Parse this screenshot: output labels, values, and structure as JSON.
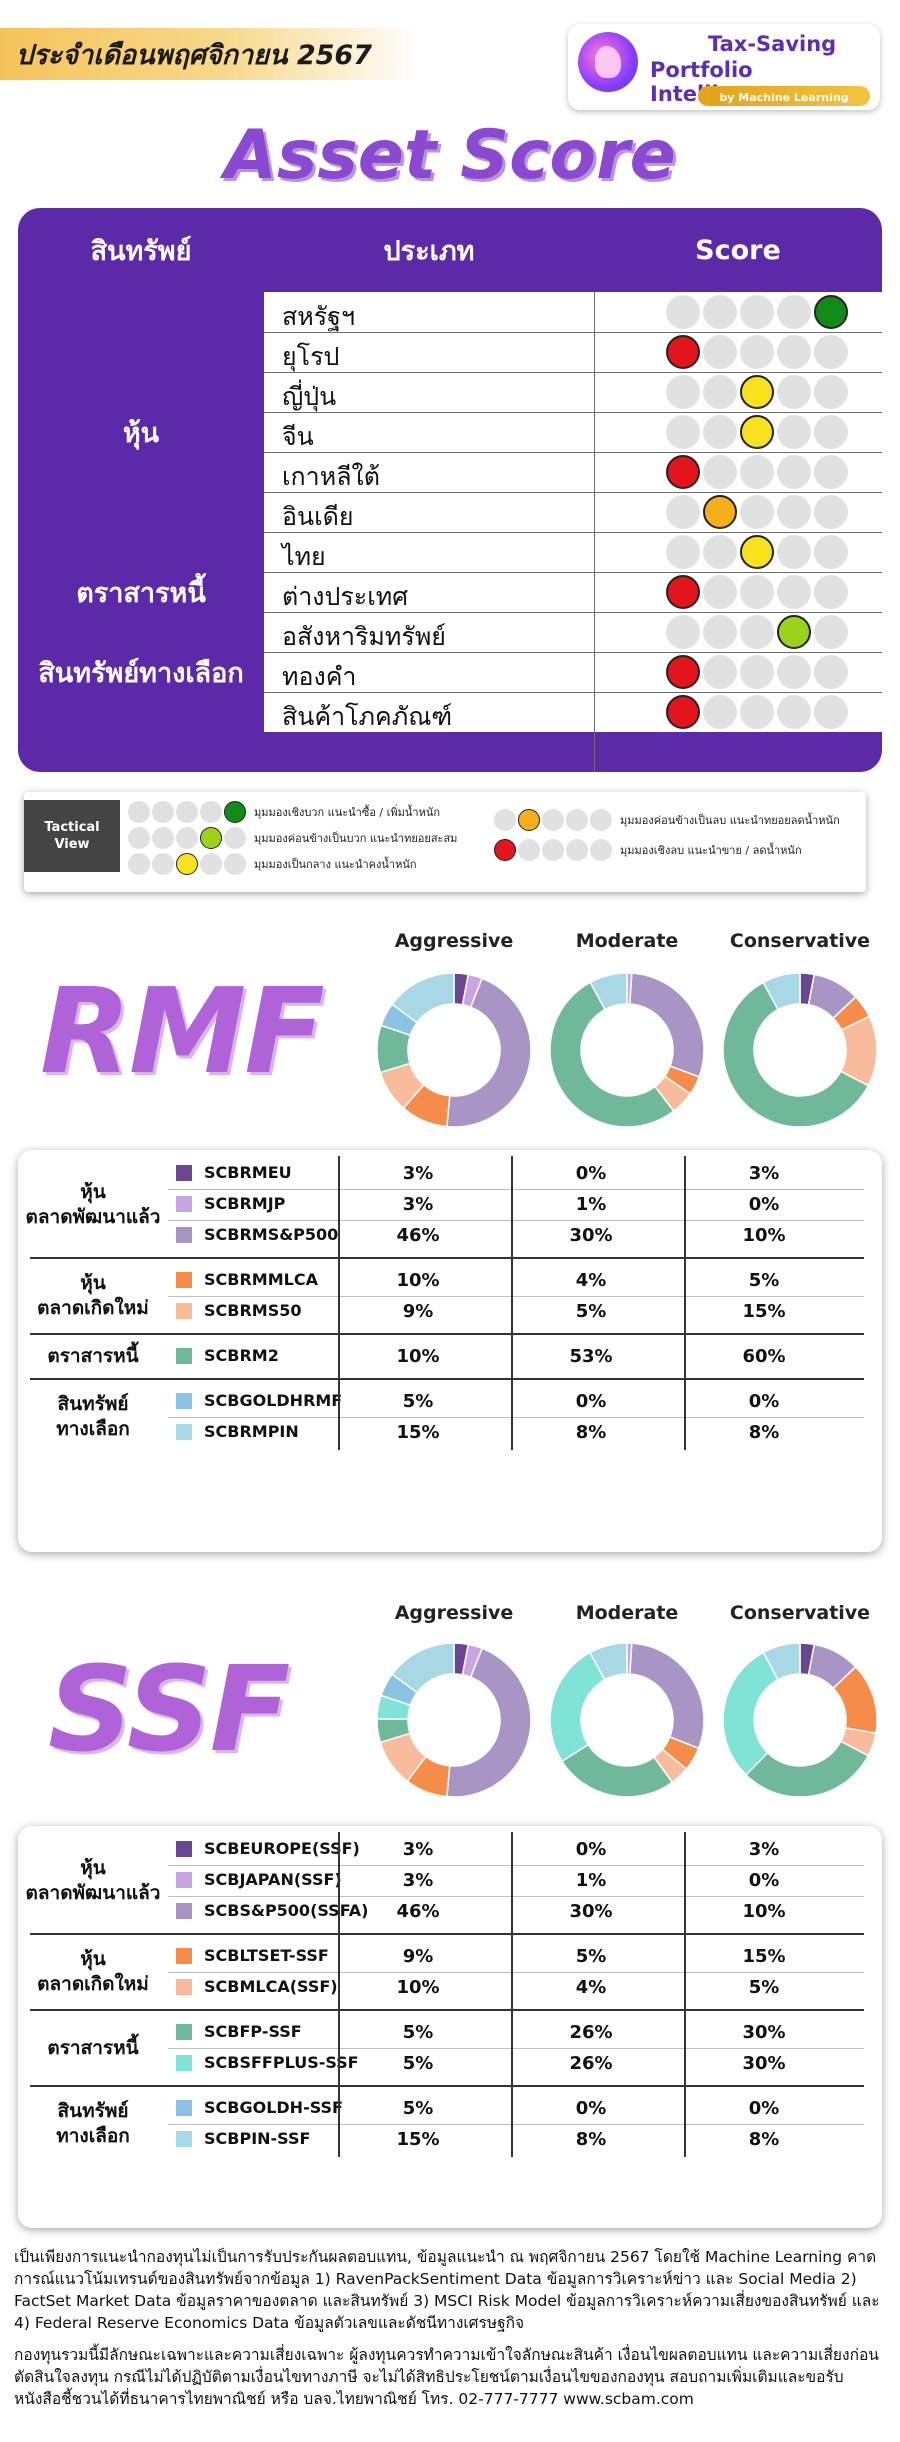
{
  "header": {
    "month": "ประจำเดือนพฤศจิกายน 2567",
    "brand_line1": "Tax-Saving",
    "brand_line2": "Portfolio Intelligence",
    "brand_tag": "by Machine Learning"
  },
  "asset_score": {
    "title": "Asset Score",
    "headers": {
      "asset": "สินทรัพย์",
      "type": "ประเภท",
      "score": "Score"
    },
    "groups": [
      {
        "name": "หุ้น",
        "rows": [
          {
            "type": "สหรัฐฯ",
            "score": 5,
            "color": "green"
          },
          {
            "type": "ยุโรป",
            "score": 1,
            "color": "red"
          },
          {
            "type": "ญี่ปุ่น",
            "score": 3,
            "color": "yellow"
          },
          {
            "type": "จีน",
            "score": 3,
            "color": "yellow"
          },
          {
            "type": "เกาหลีใต้",
            "score": 1,
            "color": "red"
          },
          {
            "type": "อินเดีย",
            "score": 2,
            "color": "orange"
          },
          {
            "type": "ไทย",
            "score": 3,
            "color": "yellow"
          }
        ]
      },
      {
        "name": "ตราสารหนี้",
        "rows": [
          {
            "type": "ต่างประเทศ",
            "score": 1,
            "color": "red"
          }
        ]
      },
      {
        "name": "สินทรัพย์ทางเลือก",
        "rows": [
          {
            "type": "อสังหาริมทรัพย์",
            "score": 4,
            "color": "lime"
          },
          {
            "type": "ทองคำ",
            "score": 1,
            "color": "red"
          },
          {
            "type": "สินค้าโภคภัณฑ์",
            "score": 1,
            "color": "red"
          }
        ]
      }
    ]
  },
  "legend": {
    "tag_line1": "Tactical",
    "tag_line2": "View",
    "items": [
      {
        "score": 5,
        "color": "green",
        "text": "มุมมองเชิงบวก แนะนำซื้อ / เพิ่มน้ำหนัก"
      },
      {
        "score": 4,
        "color": "lime",
        "text": "มุมมองค่อนข้างเป็นบวก แนะนำทยอยสะสม"
      },
      {
        "score": 3,
        "color": "yellow",
        "text": "มุมมองเป็นกลาง แนะนำคงน้ำหนัก"
      },
      {
        "score": 2,
        "color": "orange",
        "text": "มุมมองค่อนข้างเป็นลบ แนะนำทยอยลดน้ำหนัก"
      },
      {
        "score": 1,
        "color": "red",
        "text": "มุมมองเชิงลบ แนะนำขาย / ลดน้ำหนัก"
      }
    ]
  },
  "colors": {
    "red": "#e3141b",
    "orange": "#f7ae1a",
    "yellow": "#f8e21e",
    "lime": "#9ad21c",
    "green": "#118a18",
    "empty": "#e1e1e1",
    "purple": "#5c2aa8"
  },
  "profiles": [
    "Aggressive",
    "Moderate",
    "Conservative"
  ],
  "rmf": {
    "label": "RMF",
    "groups": [
      {
        "name_line1": "หุ้น",
        "name_line2": "ตลาดพัฒนาแล้ว",
        "funds": [
          {
            "name": "SCBRMEU",
            "color": "#6a4592",
            "alloc": [
              "3%",
              "0%",
              "3%"
            ]
          },
          {
            "name": "SCBRMJP",
            "color": "#c9a5e2",
            "alloc": [
              "3%",
              "1%",
              "0%"
            ]
          },
          {
            "name": "SCBRMS&P500",
            "color": "#a995c5",
            "alloc": [
              "46%",
              "30%",
              "10%"
            ]
          }
        ]
      },
      {
        "name_line1": "หุ้น",
        "name_line2": "ตลาดเกิดใหม่",
        "funds": [
          {
            "name": "SCBRMMLCA",
            "color": "#f58c4a",
            "alloc": [
              "10%",
              "4%",
              "5%"
            ]
          },
          {
            "name": "SCBRMS50",
            "color": "#f8bc9c",
            "alloc": [
              "9%",
              "5%",
              "15%"
            ]
          }
        ]
      },
      {
        "name_line1": "ตราสารหนี้",
        "name_line2": "",
        "funds": [
          {
            "name": "SCBRM2",
            "color": "#6fb99a",
            "alloc": [
              "10%",
              "53%",
              "60%"
            ]
          }
        ]
      },
      {
        "name_line1": "สินทรัพย์",
        "name_line2": "ทางเลือก",
        "funds": [
          {
            "name": "SCBGOLDHRMF",
            "color": "#8cc2e6",
            "alloc": [
              "5%",
              "0%",
              "0%"
            ]
          },
          {
            "name": "SCBRMPIN",
            "color": "#a8d8e6",
            "alloc": [
              "15%",
              "8%",
              "8%"
            ]
          }
        ]
      }
    ]
  },
  "ssf": {
    "label": "SSF",
    "groups": [
      {
        "name_line1": "หุ้น",
        "name_line2": "ตลาดพัฒนาแล้ว",
        "funds": [
          {
            "name": "SCBEUROPE(SSF)",
            "color": "#6a4592",
            "alloc": [
              "3%",
              "0%",
              "3%"
            ]
          },
          {
            "name": "SCBJAPAN(SSF)",
            "color": "#c9a5e2",
            "alloc": [
              "3%",
              "1%",
              "0%"
            ]
          },
          {
            "name": "SCBS&P500(SSFA)",
            "color": "#a995c5",
            "alloc": [
              "46%",
              "30%",
              "10%"
            ]
          }
        ]
      },
      {
        "name_line1": "หุ้น",
        "name_line2": "ตลาดเกิดใหม่",
        "funds": [
          {
            "name": "SCBLTSET-SSF",
            "color": "#f58c4a",
            "alloc": [
              "9%",
              "5%",
              "15%"
            ]
          },
          {
            "name": "SCBMLCA(SSF)",
            "color": "#f8bc9c",
            "alloc": [
              "10%",
              "4%",
              "5%"
            ]
          }
        ]
      },
      {
        "name_line1": "ตราสารหนี้",
        "name_line2": "",
        "funds": [
          {
            "name": "SCBFP-SSF",
            "color": "#6fb99a",
            "alloc": [
              "5%",
              "26%",
              "30%"
            ]
          },
          {
            "name": "SCBSFFPLUS-SSF",
            "color": "#7fe3d6",
            "alloc": [
              "5%",
              "26%",
              "30%"
            ]
          }
        ]
      },
      {
        "name_line1": "สินทรัพย์",
        "name_line2": "ทางเลือก",
        "funds": [
          {
            "name": "SCBGOLDH-SSF",
            "color": "#8cc2e6",
            "alloc": [
              "5%",
              "0%",
              "0%"
            ]
          },
          {
            "name": "SCBPIN-SSF",
            "color": "#a8d8e6",
            "alloc": [
              "15%",
              "8%",
              "8%"
            ]
          }
        ]
      }
    ]
  },
  "disclaimer": {
    "p1": "เป็นเพียงการแนะนำกองทุนไม่เป็นการรับประกันผลตอบแทน, ข้อมูลแนะนำ ณ พฤศจิกายน 2567 โดยใช้ Machine Learning คาดการณ์แนวโน้มเทรนด์ของสินทรัพย์จากข้อมูล 1) RavenPackSentiment Data ข้อมูลการวิเคราะห์ข่าว และ Social Media 2) FactSet Market Data ข้อมูลราคาของตลาด และสินทรัพย์ 3) MSCI Risk Model ข้อมูลการวิเคราะห์ความเสี่ยงของสินทรัพย์ และ 4) Federal Reserve Economics Data ข้อมูลตัวเลขและดัชนีทางเศรษฐกิจ",
    "p2": "กองทุนรวมนี้มีลักษณะเฉพาะและความเสี่ยงเฉพาะ ผู้ลงทุนควรทำความเข้าใจลักษณะสินค้า เงื่อนไขผลตอบแทน และความเสี่ยงก่อนตัดสินใจลงทุน กรณีไม่ได้ปฏิบัติตามเงื่อนไขทางภาษี จะไม่ได้สิทธิประโยชน์ตามเงื่อนไขของกองทุน สอบถามเพิ่มเติมและขอรับหนังสือชี้ชวนได้ที่ธนาคารไทยพาณิชย์ หรือ บลจ.ไทยพาณิชย์ โทร. 02-777-7777 www.scbam.com"
  }
}
